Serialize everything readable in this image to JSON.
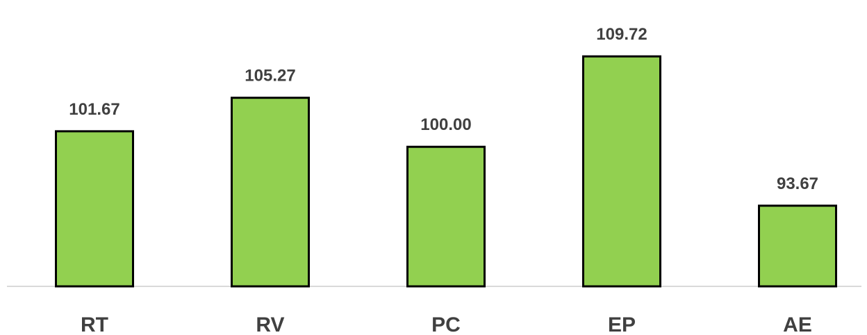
{
  "colors": {
    "bar_fill": "#92d050",
    "bar_stroke": "#000000",
    "label_text": "#404040",
    "axis_line": "#d9d9d9"
  },
  "chart_data": {
    "type": "bar",
    "categories": [
      "RT",
      "RV",
      "PC",
      "EP",
      "AE"
    ],
    "values": [
      101.67,
      105.27,
      100.0,
      109.72,
      93.67
    ],
    "data_labels": [
      "101.67",
      "105.27",
      "100.00",
      "109.72",
      "93.67"
    ],
    "title": "",
    "xlabel": "",
    "ylabel": "",
    "ylim": [
      85,
      111
    ],
    "grid": false,
    "legend": "none"
  }
}
